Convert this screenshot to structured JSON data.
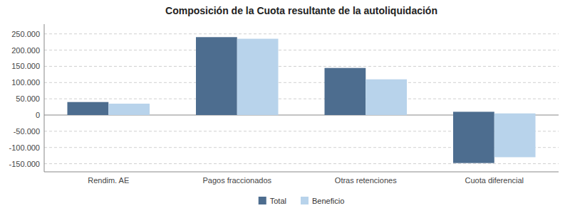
{
  "chart_data": {
    "type": "bar",
    "title": "Composición de la Cuota resultante de la autoliquidación",
    "categories": [
      "Rendim. AE",
      "Pagos fraccionados",
      "Otras retenciones",
      "Cuota diferencial"
    ],
    "series": [
      {
        "name": "Total",
        "color": "#4d6d8f",
        "values": [
          40000,
          240000,
          145000,
          10000
        ],
        "bottoms": [
          0,
          0,
          0,
          -148000
        ]
      },
      {
        "name": "Beneficio",
        "color": "#b8d3eb",
        "values": [
          35000,
          235000,
          110000,
          5000
        ],
        "bottoms": [
          0,
          0,
          0,
          -130000
        ]
      }
    ],
    "ylim": [
      -175000,
      280000
    ],
    "yticks": [
      {
        "value": -150000,
        "label": "-150.000"
      },
      {
        "value": -100000,
        "label": "-100.000"
      },
      {
        "value": -50000,
        "label": "-50.000"
      },
      0,
      {
        "value": 50000,
        "label": "50.000"
      },
      {
        "value": 100000,
        "label": "100.000"
      },
      {
        "value": 150000,
        "label": "150.000"
      },
      {
        "value": 200000,
        "label": "200.000"
      },
      {
        "value": 250000,
        "label": "250.000"
      }
    ],
    "grid": true,
    "legend": "bottom"
  }
}
